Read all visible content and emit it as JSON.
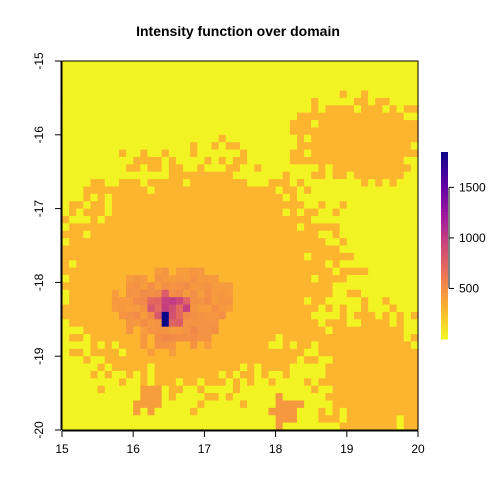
{
  "chart_data": {
    "type": "heatmap",
    "title": "Intensity function over domain",
    "xlabel": "",
    "ylabel": "",
    "xlim": [
      15,
      20
    ],
    "ylim": [
      -20,
      -15
    ],
    "x_ticks": [
      "15",
      "16",
      "17",
      "18",
      "19",
      "20"
    ],
    "y_ticks": [
      "-15",
      "-16",
      "-17",
      "-18",
      "-19",
      "-20"
    ],
    "colorbar": {
      "range": [
        0,
        1850
      ],
      "ticks": [
        "500",
        "1000",
        "1500"
      ],
      "tick_values": [
        500,
        1000,
        1500
      ],
      "colors": [
        "#f0f921",
        "#fdb32f",
        "#ed7953",
        "#cc4778",
        "#9c179e",
        "#5c01a6",
        "#0d0887"
      ],
      "placement": "right"
    },
    "field": {
      "grid": [
        50,
        50
      ],
      "background_value": 20,
      "plateau_value": 300,
      "peak": {
        "x": 16.48,
        "y": -18.5,
        "value": 1850
      },
      "peak_region": {
        "x": 16.5,
        "y": -18.35,
        "value": 700
      },
      "secondary_regions": [
        {
          "x": 16.9,
          "y": -18.6,
          "value": 480
        },
        {
          "x": 16.2,
          "y": -19.6,
          "value": 420
        },
        {
          "x": 18.1,
          "y": -19.7,
          "value": 450
        }
      ]
    }
  }
}
